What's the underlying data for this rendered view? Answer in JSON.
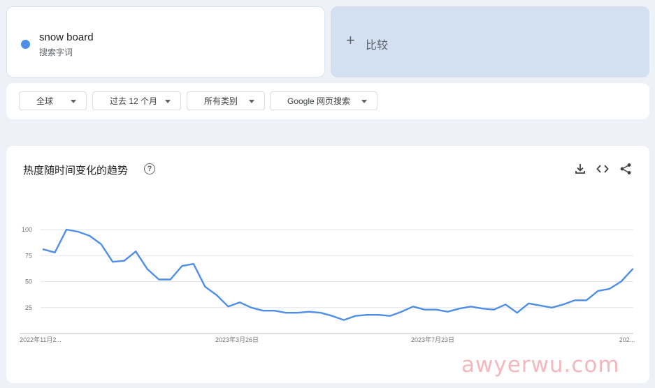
{
  "search_term": {
    "name": "snow board",
    "type": "搜索字词",
    "dot_color": "#4e8ee8"
  },
  "compare": {
    "label": "比较"
  },
  "filters": [
    {
      "label": "全球"
    },
    {
      "label": "过去 12 个月"
    },
    {
      "label": "所有类别"
    },
    {
      "label": "Google 网页搜索"
    }
  ],
  "chart": {
    "title": "热度随时间变化的趋势",
    "help_icon": "help-icon",
    "tools": [
      "download-icon",
      "embed-icon",
      "share-icon"
    ]
  },
  "chart_data": {
    "type": "line",
    "title": "热度随时间变化的趋势",
    "ylim": [
      0,
      100
    ],
    "yticks": [
      25,
      50,
      75,
      100
    ],
    "xtick_labels": [
      "2022年11月2...",
      "2023年3月26日",
      "2023年7月23日",
      "202..."
    ],
    "grid": true,
    "series": [
      {
        "color": "#4e8ee8",
        "values": [
          81,
          78,
          100,
          98,
          94,
          86,
          69,
          70,
          79,
          62,
          52,
          52,
          65,
          67,
          45,
          37,
          26,
          30,
          25,
          22,
          22,
          20,
          20,
          21,
          20,
          17,
          13,
          17,
          18,
          18,
          17,
          21,
          26,
          23,
          23,
          21,
          24,
          26,
          24,
          23,
          28,
          20,
          29,
          27,
          25,
          28,
          32,
          32,
          41,
          43,
          50,
          62
        ]
      }
    ]
  },
  "watermark": "awyerwu.com"
}
